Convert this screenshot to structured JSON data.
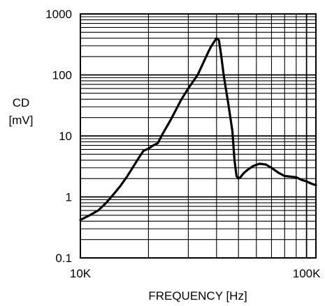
{
  "chart_data": {
    "type": "line",
    "title": "",
    "xlabel": "FREQUENCY [Hz]",
    "ylabel_line1": "CD",
    "ylabel_line2": "[mV]",
    "x_scale": "log",
    "y_scale": "log",
    "xlim": [
      10000,
      110000
    ],
    "ylim": [
      0.1,
      1000
    ],
    "x_tick_labels": [
      {
        "value": 10000,
        "label": "10K"
      },
      {
        "value": 100000,
        "label": "100K"
      }
    ],
    "y_tick_labels": [
      {
        "value": 1000,
        "label": "1000"
      },
      {
        "value": 100,
        "label": "100"
      },
      {
        "value": 10,
        "label": "10"
      },
      {
        "value": 1,
        "label": "1"
      },
      {
        "value": 0.1,
        "label": "0.1"
      }
    ],
    "grid": true,
    "legend": "none",
    "line_color": "#000000",
    "series": [
      {
        "x": [
          10000,
          11000,
          12000,
          13000,
          14000,
          15000,
          16000,
          17000,
          18000,
          19000,
          20000,
          21000,
          22000,
          23000,
          25000,
          28000,
          30000,
          33000,
          35000,
          37000,
          38000,
          40000,
          41000,
          42000,
          43000,
          45000,
          47000,
          48000,
          49000,
          50000,
          51000,
          52000,
          53000,
          55000,
          58000,
          62000,
          66000,
          70000,
          75000,
          80000,
          85000,
          90000,
          95000,
          100000,
          105000,
          110000
        ],
        "y": [
          0.42,
          0.5,
          0.6,
          0.8,
          1.1,
          1.5,
          2.1,
          3.0,
          4.2,
          5.7,
          6.2,
          7.0,
          7.6,
          10.5,
          18.0,
          40.0,
          60.0,
          100.0,
          160.0,
          250.0,
          300.0,
          400.0,
          370.0,
          200.0,
          100.0,
          35.0,
          12.0,
          4.0,
          2.2,
          2.0,
          2.1,
          2.3,
          2.5,
          2.8,
          3.2,
          3.5,
          3.4,
          3.0,
          2.5,
          2.2,
          2.15,
          2.1,
          1.9,
          1.8,
          1.65,
          1.55
        ]
      }
    ]
  }
}
